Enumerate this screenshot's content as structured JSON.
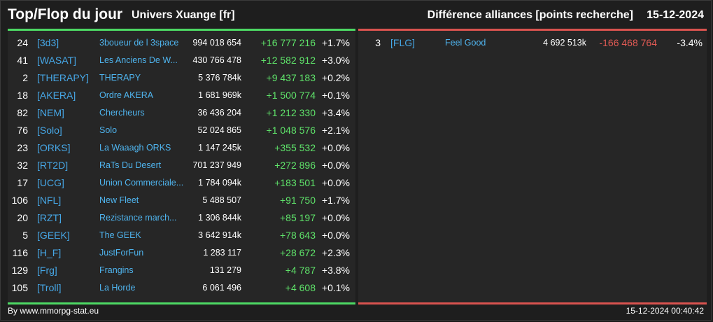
{
  "header": {
    "title": "Top/Flop du jour",
    "universe": "Univers Xuange [fr]",
    "subtitle": "Différence alliances [points recherche]",
    "date": "15-12-2024"
  },
  "colors": {
    "top_accent": "#4dd964",
    "flop_accent": "#d9534f",
    "tag": "#46a7e6",
    "positive": "#5fe36a",
    "negative": "#e05a54"
  },
  "top": [
    {
      "rank": "24",
      "tag": "[3d3]",
      "name": "3boueur de l 3space",
      "points": "994 018 654",
      "diff": "+16 777 216",
      "pct": "+1.7%"
    },
    {
      "rank": "41",
      "tag": "[WASAT]",
      "name": "Les Anciens De W...",
      "points": "430 766 478",
      "diff": "+12 582 912",
      "pct": "+3.0%"
    },
    {
      "rank": "2",
      "tag": "[THERAPY]",
      "name": "THERAPY",
      "points": "5 376 784k",
      "diff": "+9 437 183",
      "pct": "+0.2%"
    },
    {
      "rank": "18",
      "tag": "[AKERA]",
      "name": "Ordre AKERA",
      "points": "1 681 969k",
      "diff": "+1 500 774",
      "pct": "+0.1%"
    },
    {
      "rank": "82",
      "tag": "[NEM]",
      "name": "Chercheurs",
      "points": "36 436 204",
      "diff": "+1 212 330",
      "pct": "+3.4%"
    },
    {
      "rank": "76",
      "tag": "[Solo]",
      "name": "Solo",
      "points": "52 024 865",
      "diff": "+1 048 576",
      "pct": "+2.1%"
    },
    {
      "rank": "23",
      "tag": "[ORKS]",
      "name": "La Waaagh ORKS",
      "points": "1 147 245k",
      "diff": "+355 532",
      "pct": "+0.0%"
    },
    {
      "rank": "32",
      "tag": "[RT2D]",
      "name": "RaTs Du Desert",
      "points": "701 237 949",
      "diff": "+272 896",
      "pct": "+0.0%"
    },
    {
      "rank": "17",
      "tag": "[UCG]",
      "name": "Union Commerciale...",
      "points": "1 784 094k",
      "diff": "+183 501",
      "pct": "+0.0%"
    },
    {
      "rank": "106",
      "tag": "[NFL]",
      "name": "New Fleet",
      "points": "5 488 507",
      "diff": "+91 750",
      "pct": "+1.7%"
    },
    {
      "rank": "20",
      "tag": "[RZT]",
      "name": "Rezistance march...",
      "points": "1 306 844k",
      "diff": "+85 197",
      "pct": "+0.0%"
    },
    {
      "rank": "5",
      "tag": "[GEEK]",
      "name": "The GEEK",
      "points": "3 642 914k",
      "diff": "+78 643",
      "pct": "+0.0%"
    },
    {
      "rank": "116",
      "tag": "[H_F]",
      "name": "JustForFun",
      "points": "1 283 117",
      "diff": "+28 672",
      "pct": "+2.3%"
    },
    {
      "rank": "129",
      "tag": "[Frg]",
      "name": "Frangins",
      "points": "131 279",
      "diff": "+4 787",
      "pct": "+3.8%"
    },
    {
      "rank": "105",
      "tag": "[Troll]",
      "name": "La Horde",
      "points": "6 061 496",
      "diff": "+4 608",
      "pct": "+0.1%"
    }
  ],
  "flop": [
    {
      "rank": "3",
      "tag": "[FLG]",
      "name": "Feel Good",
      "points": "4 692 513k",
      "diff": "-166 468 764",
      "pct": "-3.4%"
    }
  ],
  "footer": {
    "source": "By www.mmorpg-stat.eu",
    "timestamp": "15-12-2024 00:40:42"
  }
}
